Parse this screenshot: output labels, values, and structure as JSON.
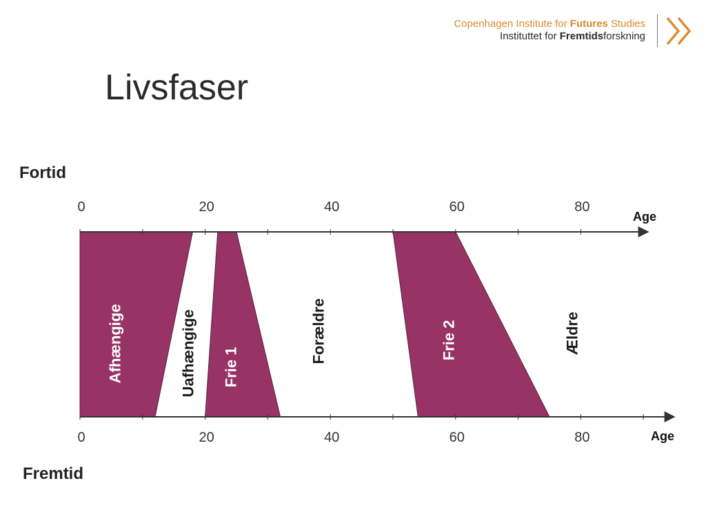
{
  "header": {
    "logo_line1_prefix": "Copenhagen Institute for ",
    "logo_line1_bold": "Futures",
    "logo_line1_suffix": " Studies",
    "logo_line2_prefix": "Instituttet for ",
    "logo_line2_bold": "Fremtids",
    "logo_line2_suffix": "forskning"
  },
  "title": "Livsfaser",
  "labels": {
    "past": "Fortid",
    "future": "Fremtid"
  },
  "axis": {
    "ticks": [
      "0",
      "20",
      "40",
      "60",
      "80"
    ],
    "title": "Age",
    "domain": [
      0,
      95
    ]
  },
  "colors": {
    "phase_fill": "#983365",
    "axis": "#333333",
    "light_text": "#ffffff",
    "dark_text": "#1a1a1a"
  },
  "phases": [
    {
      "label": "Afhængige",
      "filled": true,
      "top": [
        0,
        18
      ],
      "bottom": [
        0,
        12
      ]
    },
    {
      "label": "Uafhængige",
      "filled": false
    },
    {
      "label": "Frie 1",
      "filled": true,
      "top": [
        22,
        25
      ],
      "bottom": [
        20,
        32
      ]
    },
    {
      "label": "Forældre",
      "filled": false
    },
    {
      "label": "Frie 2",
      "filled": true,
      "top": [
        50,
        60
      ],
      "bottom": [
        54,
        75
      ]
    },
    {
      "label": "Ældre",
      "filled": false
    }
  ]
}
